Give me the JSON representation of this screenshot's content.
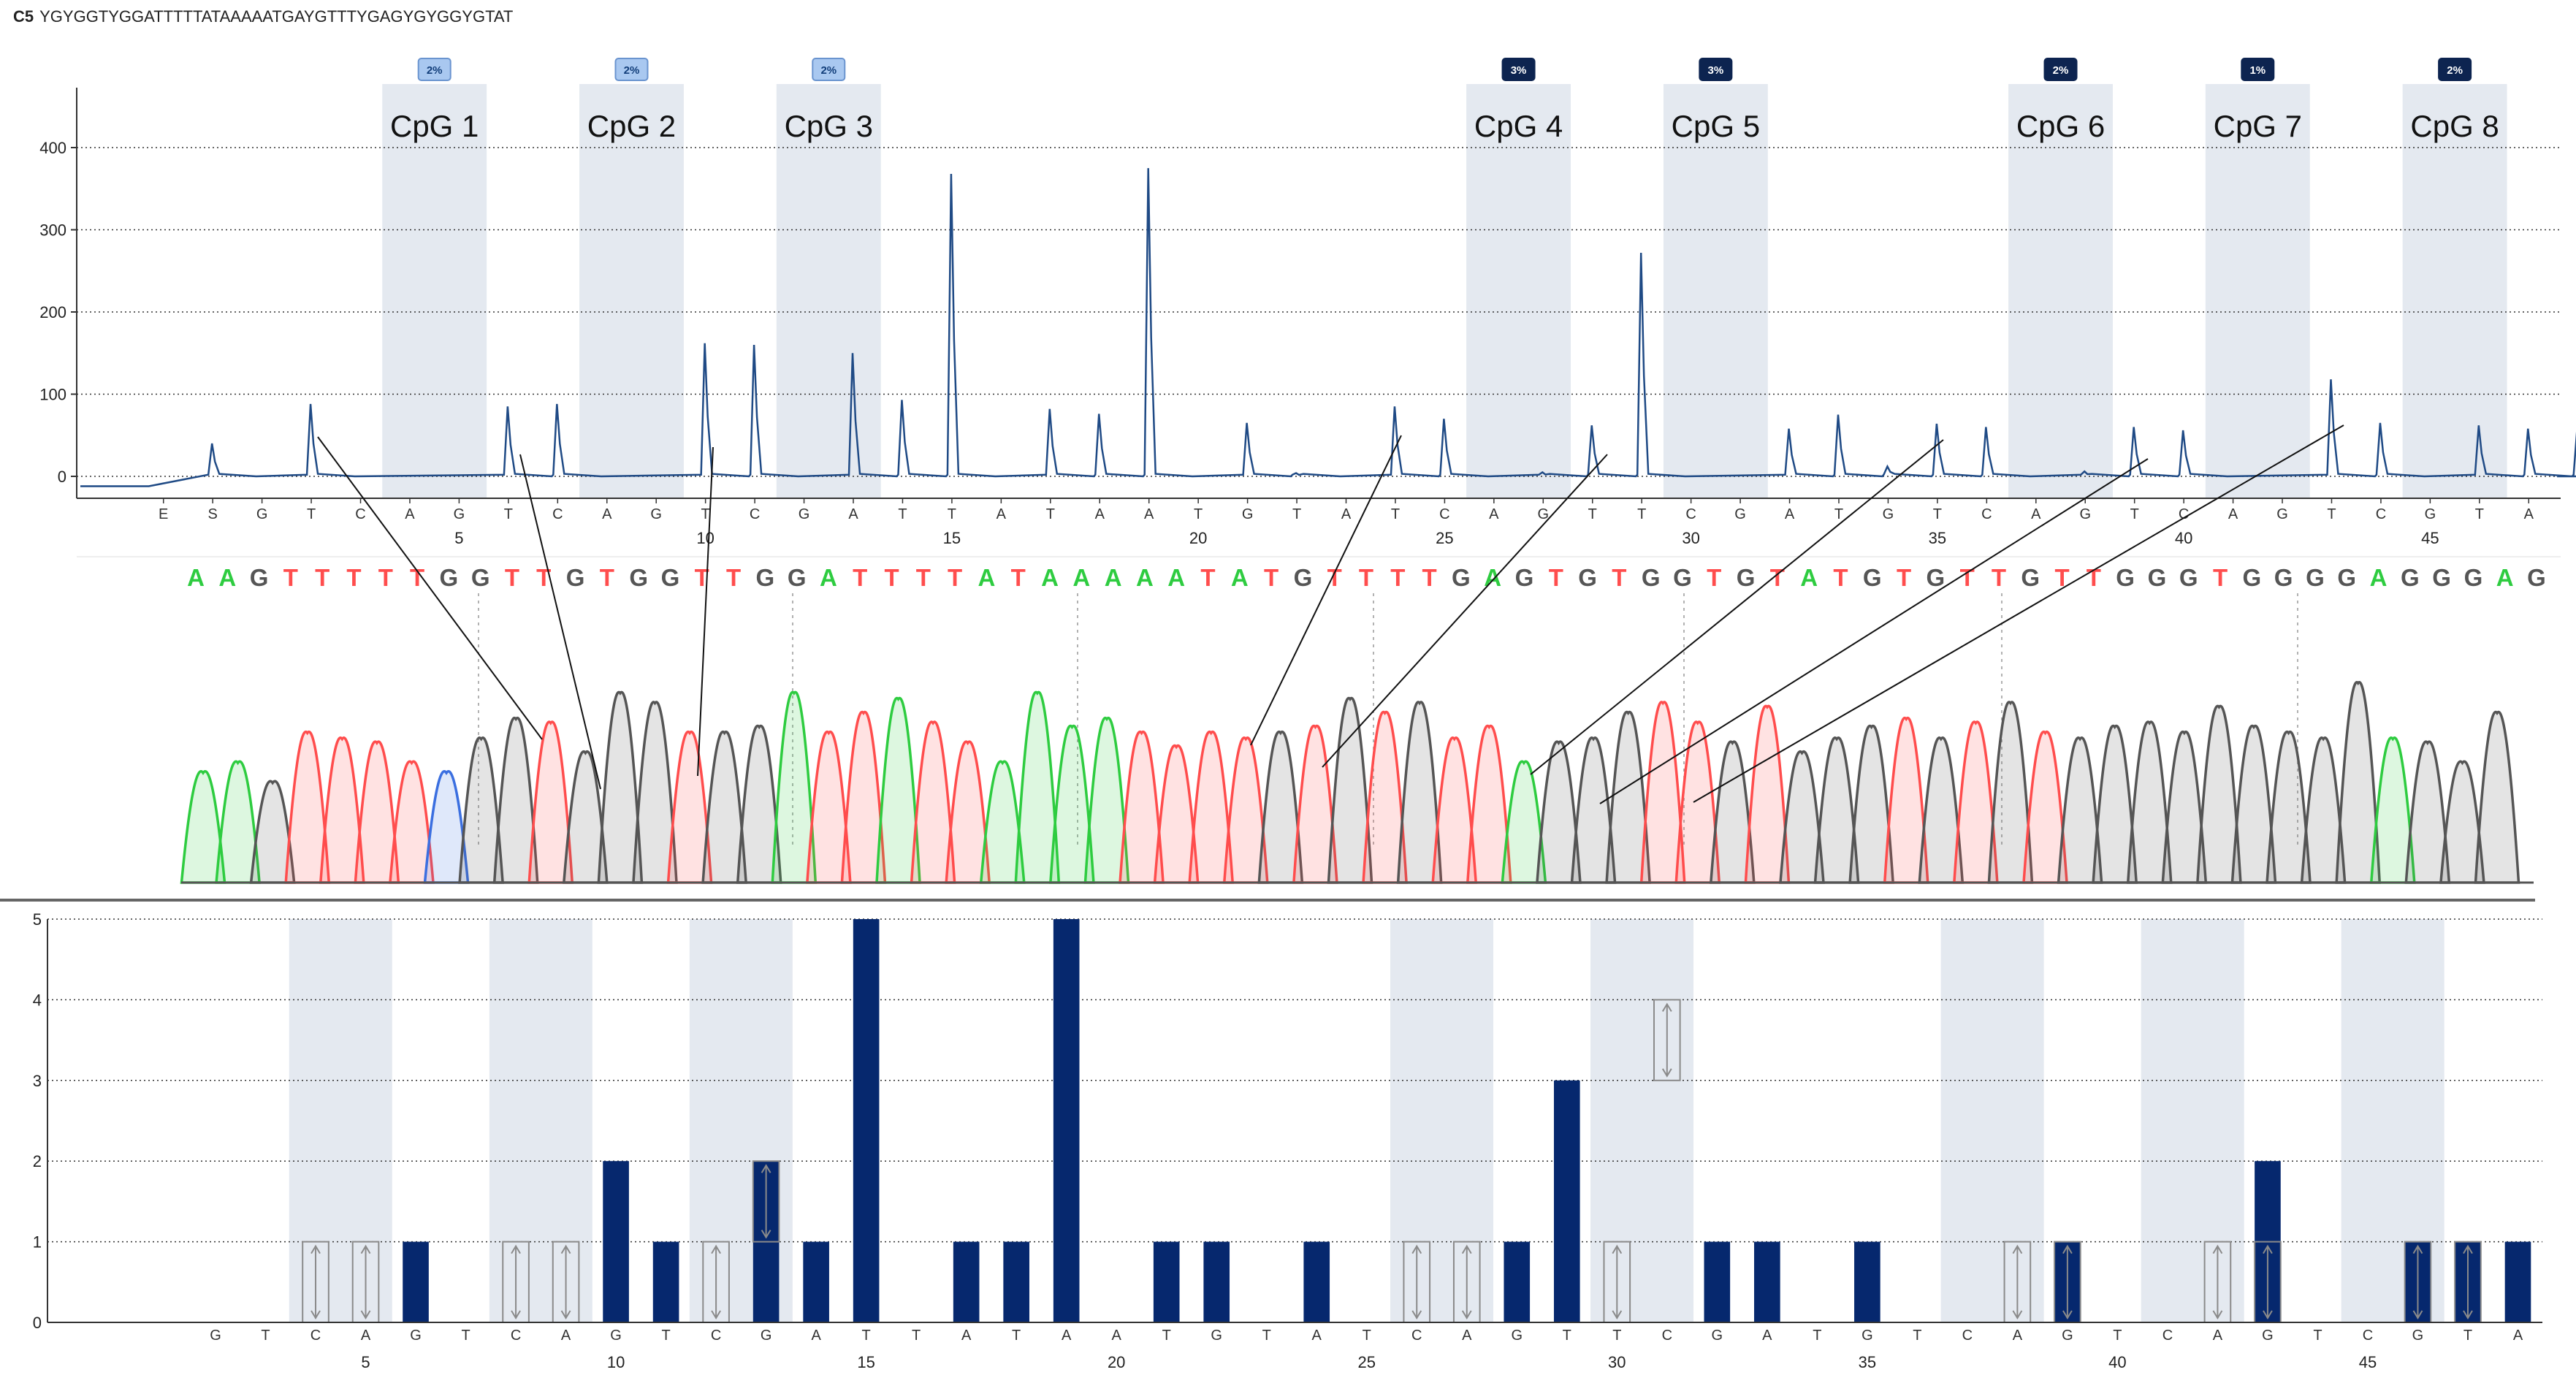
{
  "header": {
    "sample_id": "C5",
    "sequence": "YGYGGTYGGATTTTTATAAAAATGAYGTTTYGAGYGYGGYGTAT"
  },
  "colors": {
    "cpg_band": "#e4e9f0",
    "pyro_line": "#1f4a85",
    "bar": "#06286e",
    "A": "#2ecc40",
    "T": "#ff4d4d",
    "G": "#555555",
    "C": "#3b6fe0"
  },
  "cpg_sites": [
    {
      "label": "CpG 1",
      "badge": "2%",
      "position": 4
    },
    {
      "label": "CpG 2",
      "badge": "2%",
      "position": 8
    },
    {
      "label": "CpG 3",
      "badge": "2%",
      "position": 12
    },
    {
      "label": "CpG 4",
      "badge": "3%",
      "position": 26
    },
    {
      "label": "CpG 5",
      "badge": "3%",
      "position": 30
    },
    {
      "label": "CpG 6",
      "badge": "2%",
      "position": 37
    },
    {
      "label": "CpG 7",
      "badge": "1%",
      "position": 41
    },
    {
      "label": "CpG 8",
      "badge": "2%",
      "position": 45
    }
  ],
  "chart_data": [
    {
      "type": "line",
      "name": "pyrogram",
      "ylim": [
        -20,
        450
      ],
      "yticks": [
        0,
        100,
        200,
        300,
        400
      ],
      "x_tick_labels": [
        5,
        10,
        15,
        20,
        25,
        30,
        35,
        40,
        45
      ],
      "dispensation_order": [
        "E",
        "S",
        "G",
        "T",
        "C",
        "A",
        "G",
        "T",
        "C",
        "A",
        "G",
        "T",
        "C",
        "G",
        "A",
        "T",
        "T",
        "A",
        "T",
        "A",
        "A",
        "T",
        "G",
        "T",
        "A",
        "T",
        "C",
        "A",
        "G",
        "T",
        "T",
        "C",
        "G",
        "A",
        "T",
        "G",
        "T",
        "C",
        "A",
        "G",
        "T",
        "C",
        "A",
        "G",
        "T",
        "C",
        "G",
        "T",
        "A"
      ],
      "baseline_start": -12,
      "peaks": [
        {
          "dispensation": 2,
          "value": 40
        },
        {
          "dispensation": 4,
          "value": 88
        },
        {
          "dispensation": 8,
          "value": 85
        },
        {
          "dispensation": 9,
          "value": 88
        },
        {
          "dispensation": 12,
          "value": 162
        },
        {
          "dispensation": 13,
          "value": 160
        },
        {
          "dispensation": 15,
          "value": 150
        },
        {
          "dispensation": 16,
          "value": 93
        },
        {
          "dispensation": 17,
          "value": 368
        },
        {
          "dispensation": 19,
          "value": 82
        },
        {
          "dispensation": 20,
          "value": 76
        },
        {
          "dispensation": 21,
          "value": 375
        },
        {
          "dispensation": 23,
          "value": 65
        },
        {
          "dispensation": 24,
          "value": 4
        },
        {
          "dispensation": 26,
          "value": 85
        },
        {
          "dispensation": 27,
          "value": 70
        },
        {
          "dispensation": 29,
          "value": 5
        },
        {
          "dispensation": 30,
          "value": 62
        },
        {
          "dispensation": 31,
          "value": 272
        },
        {
          "dispensation": 34,
          "value": 58
        },
        {
          "dispensation": 35,
          "value": 75
        },
        {
          "dispensation": 36,
          "value": 12
        },
        {
          "dispensation": 37,
          "value": 64
        },
        {
          "dispensation": 38,
          "value": 60
        },
        {
          "dispensation": 40,
          "value": 6
        },
        {
          "dispensation": 41,
          "value": 60
        },
        {
          "dispensation": 42,
          "value": 56
        },
        {
          "dispensation": 45,
          "value": 118
        },
        {
          "dispensation": 46,
          "value": 65
        },
        {
          "dispensation": 48,
          "value": 62
        },
        {
          "dispensation": 49,
          "value": 58
        },
        {
          "dispensation": 50,
          "value": 60
        }
      ]
    },
    {
      "type": "bar",
      "name": "histogram",
      "ylim": [
        0,
        5
      ],
      "yticks": [
        0,
        1,
        2,
        3,
        4,
        5
      ],
      "x_tick_labels": [
        5,
        10,
        15,
        20,
        25,
        30,
        35,
        40,
        45
      ],
      "categories": [
        "G",
        "T",
        "C",
        "A",
        "G",
        "T",
        "C",
        "A",
        "G",
        "T",
        "C",
        "G",
        "A",
        "T",
        "T",
        "A",
        "T",
        "A",
        "A",
        "T",
        "G",
        "T",
        "A",
        "T",
        "C",
        "A",
        "G",
        "T",
        "T",
        "C",
        "G",
        "A",
        "T",
        "G",
        "T",
        "C",
        "A",
        "G",
        "T",
        "C",
        "A",
        "G",
        "T",
        "C",
        "G",
        "T",
        "A"
      ],
      "values": [
        0,
        0,
        0,
        0,
        1,
        0,
        0,
        0,
        2,
        1,
        0,
        2,
        1,
        5,
        0,
        1,
        1,
        5,
        0,
        1,
        1,
        0,
        1,
        0,
        0,
        0,
        1,
        3,
        0,
        0,
        1,
        1,
        0,
        1,
        0,
        0,
        0,
        1,
        0,
        0,
        0,
        2,
        0,
        0,
        1,
        1,
        1
      ],
      "variable_positions": [
        2,
        3,
        6,
        7,
        10,
        11,
        24,
        25,
        28,
        29,
        36,
        37,
        40,
        41,
        44,
        45
      ],
      "variable_ranges": {
        "11": [
          1,
          2
        ],
        "29": [
          3,
          4
        ]
      }
    }
  ],
  "chromatogram": {
    "bases": [
      "A",
      "A",
      "G",
      "T",
      "T",
      "T",
      "T",
      "T",
      "G",
      "G",
      "T",
      "T",
      "G",
      "T",
      "G",
      "G",
      "T",
      "T",
      "G",
      "G",
      "A",
      "T",
      "T",
      "T",
      "T",
      "A",
      "T",
      "A",
      "A",
      "A",
      "A",
      "A",
      "T",
      "A",
      "T",
      "G",
      "T",
      "T",
      "T",
      "T",
      "G",
      "A",
      "G",
      "T",
      "G",
      "T",
      "G",
      "G",
      "T",
      "G",
      "T",
      "A",
      "T",
      "G",
      "T",
      "G",
      "T",
      "T",
      "G",
      "T",
      "T",
      "G",
      "G",
      "G",
      "T",
      "G",
      "G",
      "G",
      "G",
      "A",
      "G",
      "G",
      "G",
      "A",
      "G"
    ],
    "trace_colors": [
      "#2ecc40",
      "#2ecc40",
      "#555555",
      "#ff4d4d",
      "#ff4d4d",
      "#ff4d4d",
      "#ff4d4d",
      "#3b6fe0",
      "#555555",
      "#555555",
      "#ff4d4d",
      "#555555",
      "#555555",
      "#555555",
      "#ff4d4d",
      "#555555",
      "#555555",
      "#2ecc40",
      "#ff4d4d",
      "#ff4d4d",
      "#2ecc40",
      "#ff4d4d",
      "#ff4d4d",
      "#2ecc40",
      "#2ecc40",
      "#2ecc40",
      "#2ecc40",
      "#ff4d4d",
      "#ff4d4d",
      "#ff4d4d",
      "#ff4d4d",
      "#555555",
      "#ff4d4d",
      "#555555",
      "#ff4d4d",
      "#555555",
      "#ff4d4d",
      "#ff4d4d",
      "#2ecc40",
      "#555555",
      "#555555",
      "#555555",
      "#ff4d4d",
      "#ff4d4d",
      "#555555",
      "#ff4d4d",
      "#555555",
      "#555555",
      "#555555",
      "#ff4d4d",
      "#555555",
      "#ff4d4d",
      "#555555",
      "#ff4d4d",
      "#555555",
      "#555555",
      "#555555",
      "#555555",
      "#555555",
      "#555555",
      "#555555",
      "#555555",
      "#555555",
      "#2ecc40",
      "#555555",
      "#555555",
      "#555555"
    ],
    "trace_heights": [
      0.55,
      0.6,
      0.5,
      0.75,
      0.72,
      0.7,
      0.6,
      0.55,
      0.72,
      0.82,
      0.8,
      0.65,
      0.95,
      0.9,
      0.75,
      0.75,
      0.78,
      0.95,
      0.75,
      0.85,
      0.92,
      0.8,
      0.7,
      0.6,
      0.95,
      0.78,
      0.82,
      0.75,
      0.68,
      0.75,
      0.72,
      0.75,
      0.78,
      0.92,
      0.85,
      0.9,
      0.72,
      0.78,
      0.6,
      0.7,
      0.72,
      0.85,
      0.9,
      0.8,
      0.7,
      0.88,
      0.65,
      0.72,
      0.78,
      0.82,
      0.72,
      0.8,
      0.9,
      0.75,
      0.72,
      0.78,
      0.8,
      0.75,
      0.88,
      0.78,
      0.75,
      0.72,
      1.0,
      0.72,
      0.7,
      0.6,
      0.85
    ]
  }
}
